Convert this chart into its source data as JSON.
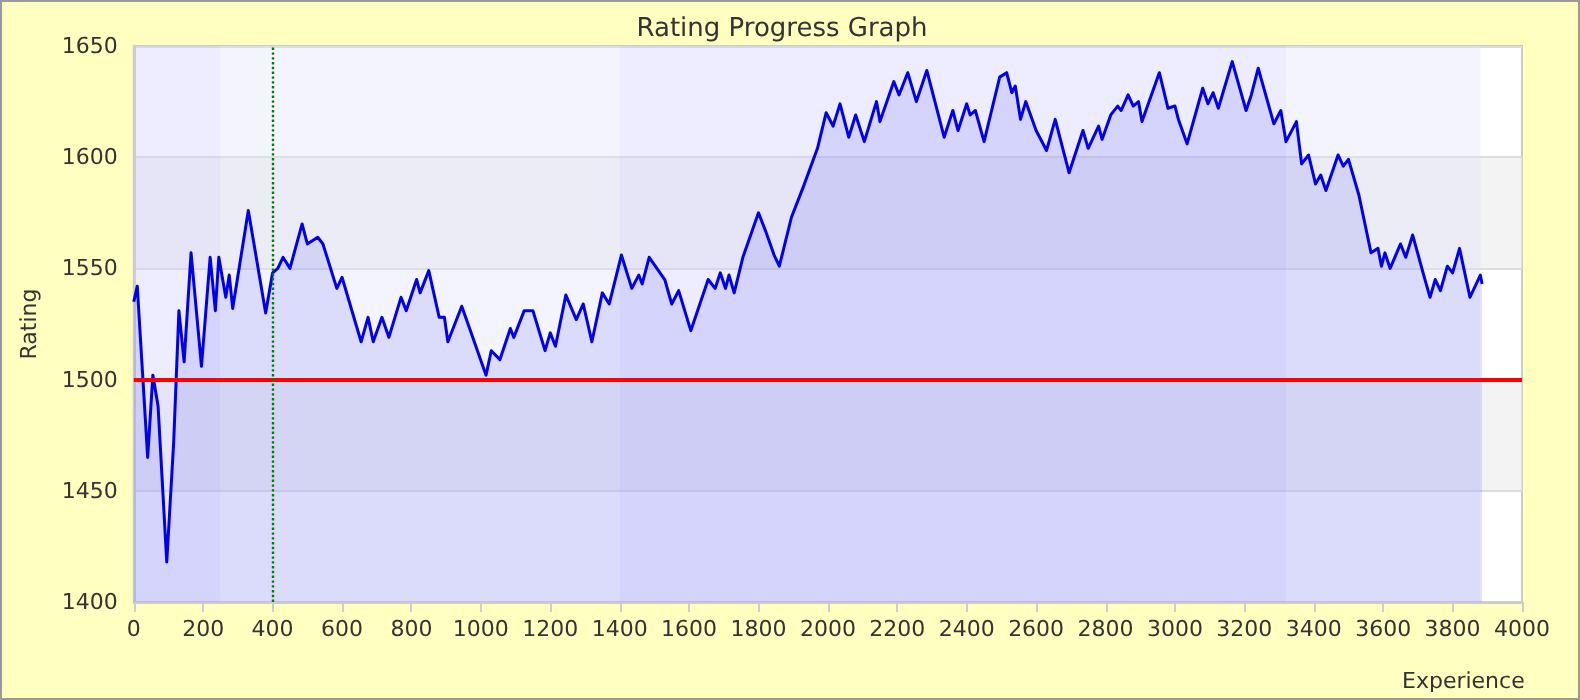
{
  "chart_data": {
    "type": "area",
    "title": "Rating Progress Graph",
    "xlabel": "Experience",
    "ylabel": "Rating",
    "xlim": [
      0,
      4000
    ],
    "xticks": [
      0,
      200,
      400,
      600,
      800,
      1000,
      1200,
      1400,
      1600,
      1800,
      2000,
      2200,
      2400,
      2600,
      2800,
      3000,
      3200,
      3400,
      3600,
      3800,
      4000
    ],
    "ylim": [
      1400,
      1650
    ],
    "yticks": [
      1400,
      1450,
      1500,
      1550,
      1600,
      1650
    ],
    "grid": "y",
    "marker": "none",
    "line_style": "solid",
    "series": [
      {
        "color": "#0000ee",
        "x": [
          0,
          10,
          40,
          55,
          70,
          95,
          115,
          130,
          145,
          165,
          195,
          220,
          235,
          245,
          265,
          275,
          285,
          330,
          380,
          400,
          415,
          430,
          450,
          485,
          500,
          530,
          545,
          585,
          600,
          655,
          675,
          690,
          715,
          735,
          770,
          785,
          815,
          825,
          850,
          880,
          895,
          905,
          945,
          970,
          1015,
          1030,
          1055,
          1085,
          1095,
          1125,
          1150,
          1185,
          1200,
          1215,
          1245,
          1275,
          1295,
          1320,
          1350,
          1370,
          1405,
          1435,
          1455,
          1465,
          1485,
          1530,
          1550,
          1570,
          1605,
          1655,
          1675,
          1690,
          1705,
          1715,
          1730,
          1755,
          1800,
          1820,
          1845,
          1860,
          1895,
          1930,
          1970,
          1995,
          2015,
          2035,
          2060,
          2080,
          2105,
          2140,
          2150,
          2190,
          2205,
          2230,
          2255,
          2285,
          2335,
          2360,
          2375,
          2400,
          2410,
          2425,
          2450,
          2495,
          2515,
          2530,
          2540,
          2555,
          2570,
          2600,
          2630,
          2655,
          2695,
          2735,
          2750,
          2780,
          2790,
          2815,
          2835,
          2845,
          2865,
          2880,
          2895,
          2905,
          2955,
          2980,
          3000,
          3010,
          3035,
          3080,
          3095,
          3110,
          3125,
          3165,
          3205,
          3220,
          3240,
          3285,
          3305,
          3320,
          3350,
          3365,
          3385,
          3405,
          3420,
          3435,
          3470,
          3485,
          3500,
          3530,
          3565,
          3585,
          3595,
          3605,
          3620,
          3650,
          3665,
          3685,
          3715,
          3735,
          3750,
          3765,
          3785,
          3800,
          3820,
          3850,
          3880,
          3885
        ],
        "values": [
          1535,
          1542,
          1465,
          1502,
          1488,
          1418,
          1472,
          1531,
          1508,
          1557,
          1506,
          1555,
          1531,
          1555,
          1537,
          1547,
          1532,
          1576,
          1530,
          1548,
          1550,
          1555,
          1550,
          1570,
          1561,
          1564,
          1561,
          1541,
          1546,
          1517,
          1528,
          1517,
          1528,
          1519,
          1537,
          1531,
          1545,
          1539,
          1549,
          1528,
          1528,
          1517,
          1533,
          1522,
          1502,
          1513,
          1509,
          1523,
          1519,
          1531,
          1531,
          1513,
          1521,
          1515,
          1538,
          1527,
          1534,
          1517,
          1539,
          1534,
          1556,
          1541,
          1547,
          1543,
          1555,
          1545,
          1534,
          1540,
          1522,
          1545,
          1541,
          1548,
          1541,
          1547,
          1539,
          1555,
          1575,
          1567,
          1556,
          1551,
          1573,
          1587,
          1604,
          1620,
          1614,
          1624,
          1609,
          1619,
          1607,
          1625,
          1616,
          1634,
          1628,
          1638,
          1625,
          1639,
          1609,
          1621,
          1612,
          1624,
          1619,
          1621,
          1607,
          1636,
          1638,
          1629,
          1632,
          1617,
          1625,
          1612,
          1603,
          1617,
          1593,
          1612,
          1604,
          1614,
          1608,
          1619,
          1623,
          1621,
          1628,
          1623,
          1625,
          1616,
          1638,
          1622,
          1623,
          1617,
          1606,
          1631,
          1624,
          1629,
          1622,
          1643,
          1621,
          1628,
          1640,
          1615,
          1621,
          1607,
          1616,
          1597,
          1601,
          1588,
          1592,
          1585,
          1601,
          1596,
          1599,
          1583,
          1557,
          1559,
          1551,
          1557,
          1550,
          1561,
          1555,
          1565,
          1548,
          1537,
          1545,
          1540,
          1551,
          1548,
          1559,
          1537,
          1547,
          1543
        ]
      }
    ],
    "ref_lines": [
      {
        "axis": "y",
        "value": 1500,
        "color": "#ff0000",
        "line_style": "solid"
      },
      {
        "axis": "x",
        "value": 400,
        "color": "#008000",
        "line_style": "dotted"
      }
    ],
    "bands": [
      {
        "axis": "x",
        "from": 0,
        "to": 250,
        "color": "#ccccff"
      },
      {
        "axis": "x",
        "from": 250,
        "to": 1400,
        "color": "#e0e0fc"
      },
      {
        "axis": "x",
        "from": 1400,
        "to": 3320,
        "color": "#ccccff"
      },
      {
        "axis": "x",
        "from": 3320,
        "to": 3880,
        "color": "#e0e0fc"
      }
    ]
  }
}
